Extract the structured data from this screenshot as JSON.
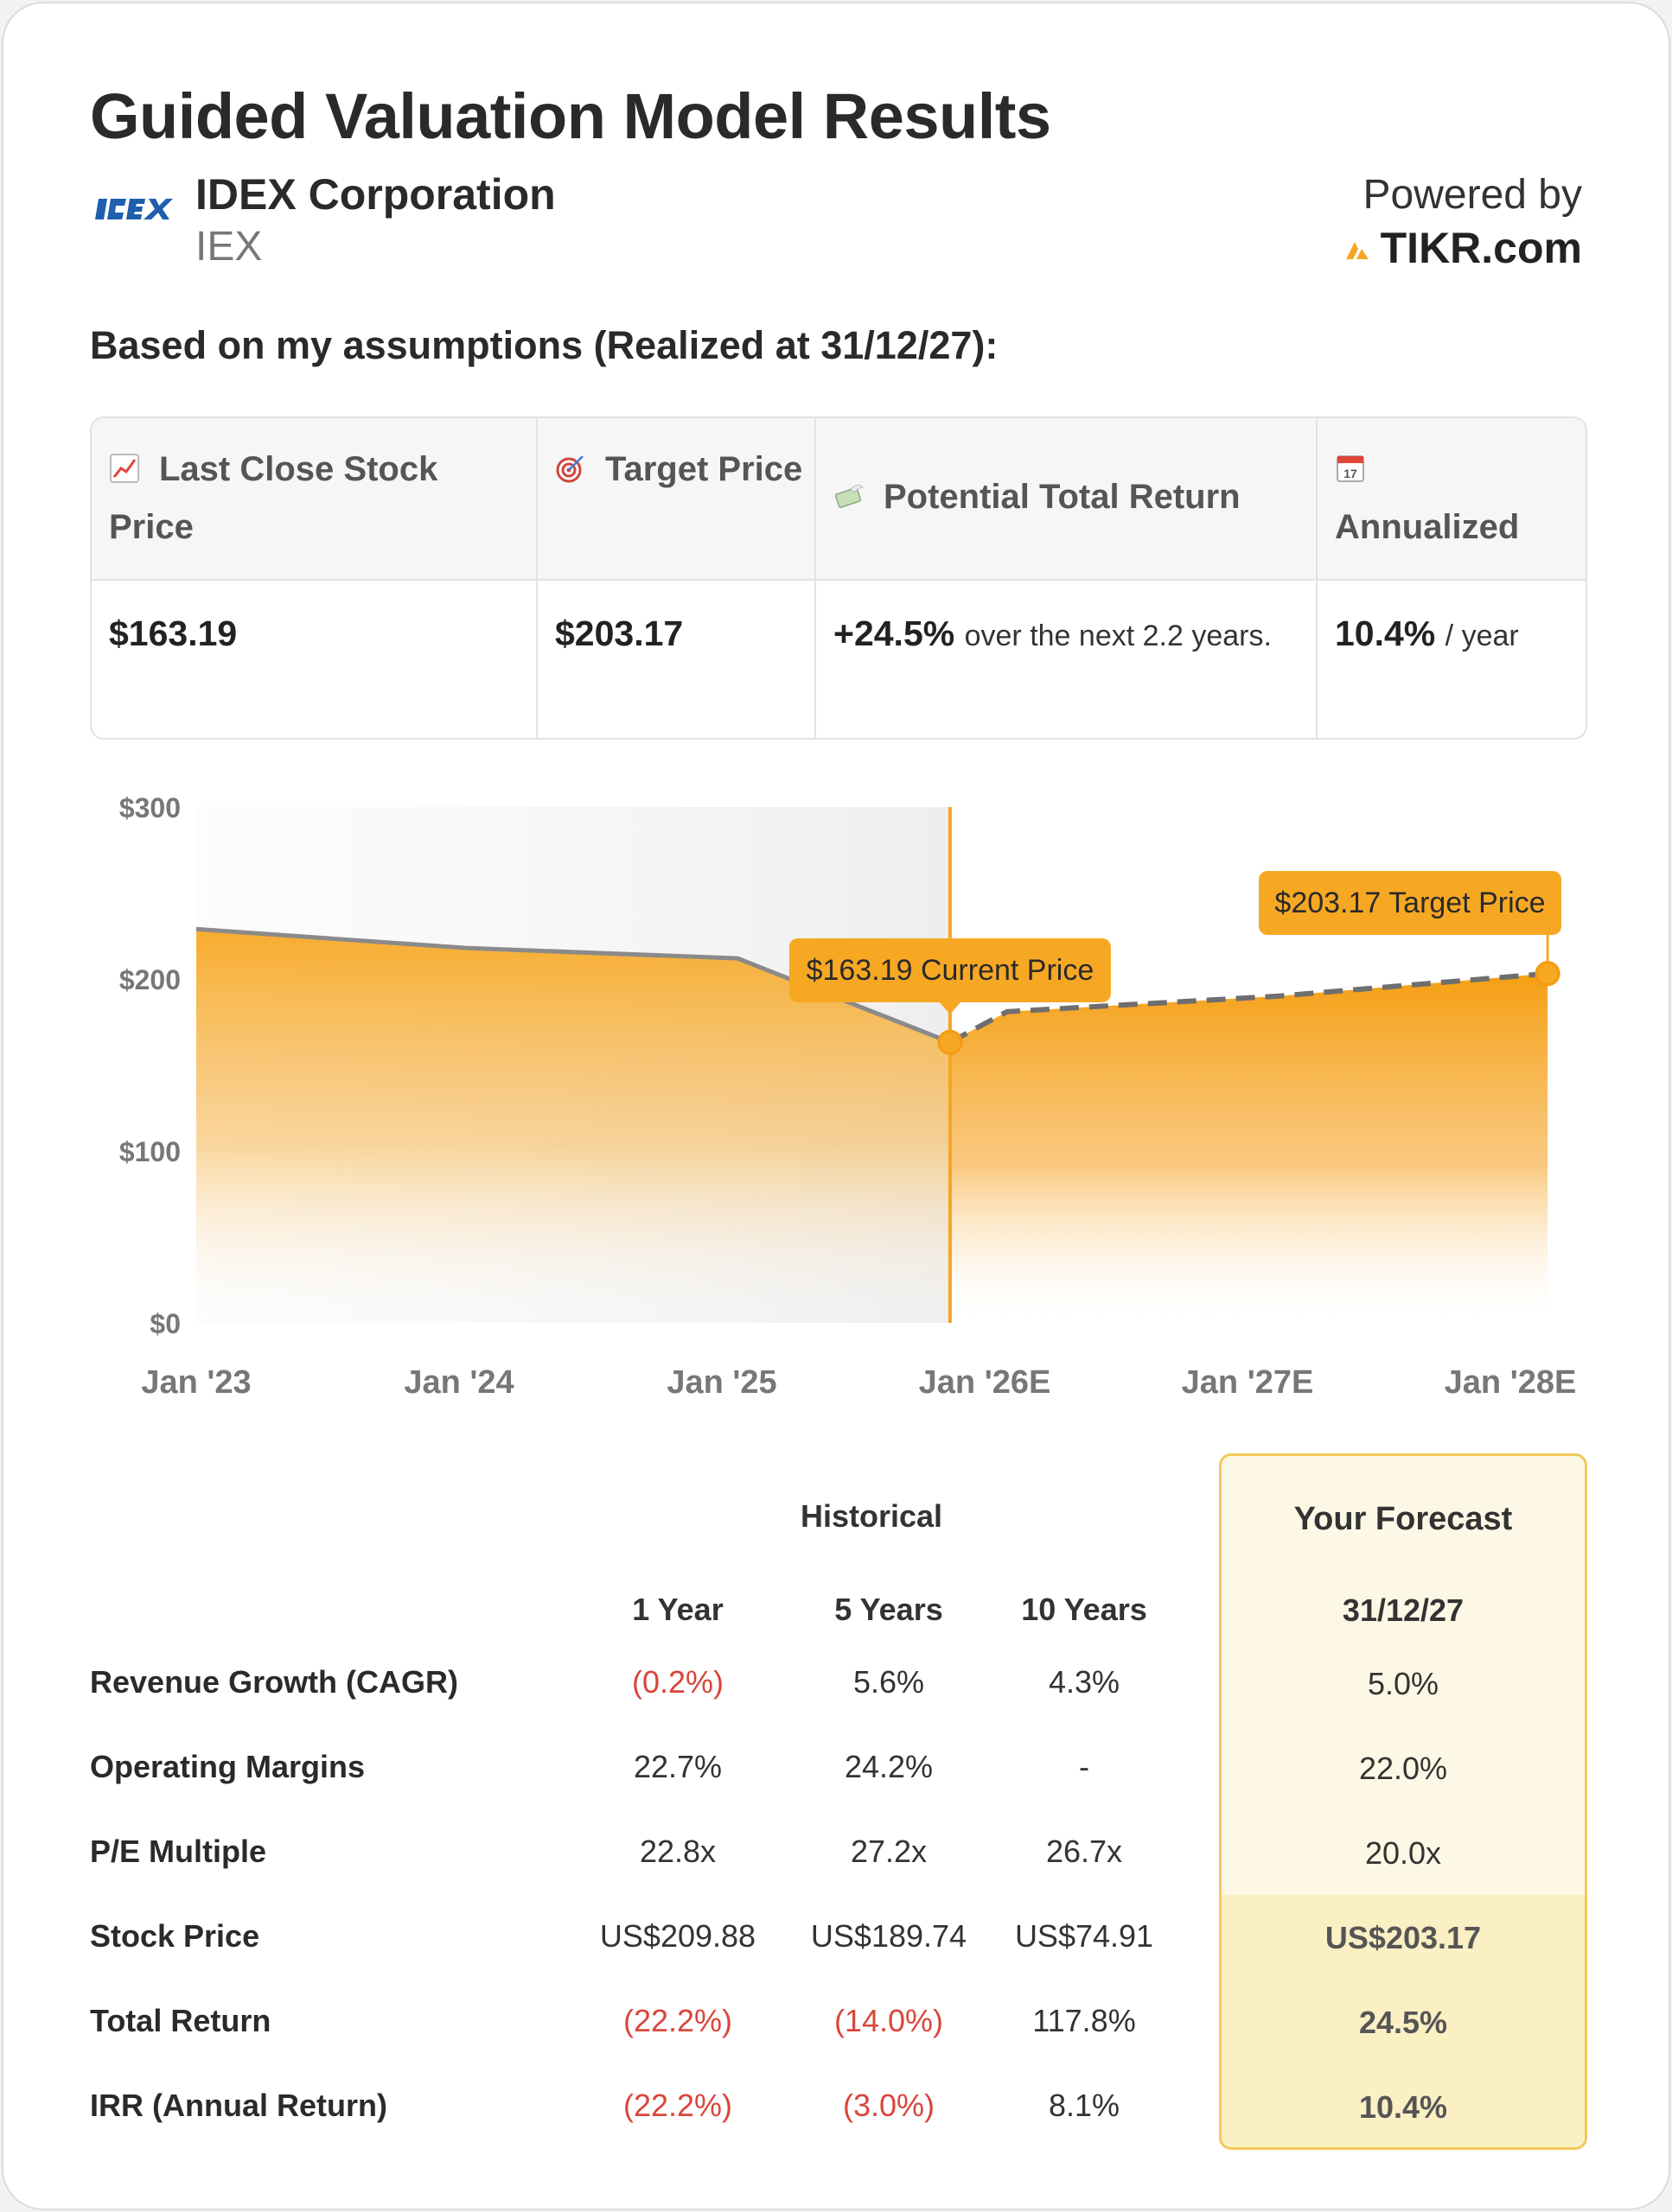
{
  "header": {
    "title": "Guided Valuation Model Results",
    "company": "IDEX Corporation",
    "ticker": "IEX",
    "powered_by": "Powered by",
    "brand": "TIKR.com",
    "assumptions": "Based on my assumptions (Realized at 31/12/27):"
  },
  "stats": {
    "headers": [
      "Last Close Stock Price",
      "Target Price",
      "Potential Total Return",
      "Annualized"
    ],
    "last_close": "$163.19",
    "target": "$203.17",
    "total_return": "+24.5%",
    "total_return_note": "over the next 2.2 years.",
    "annualized": "10.4%",
    "annualized_note": "/ year"
  },
  "colors": {
    "accent": "#f7a823",
    "negative": "#d9463b",
    "forecast_bg": "#fdf8e6",
    "forecast_border": "#f3c95a"
  },
  "chart_data": {
    "type": "area",
    "x_ticks": [
      "Jan '23",
      "Jan '24",
      "Jan '25",
      "Jan '26E",
      "Jan '27E",
      "Jan '28E"
    ],
    "y_ticks": [
      "$0",
      "$100",
      "$200",
      "$300"
    ],
    "ylim": [
      0,
      300
    ],
    "xlim": [
      "2023-01-01",
      "2028-01-01"
    ],
    "historical": [
      {
        "x": "2023-01-01",
        "y": 229
      },
      {
        "x": "2024-01-01",
        "y": 218
      },
      {
        "x": "2025-01-01",
        "y": 212
      },
      {
        "x": "2025-10-15",
        "y": 163.19
      }
    ],
    "forecast": [
      {
        "x": "2025-10-15",
        "y": 163.19
      },
      {
        "x": "2025-12-31",
        "y": 181
      },
      {
        "x": "2026-12-31",
        "y": 190
      },
      {
        "x": "2027-12-31",
        "y": 203.17
      }
    ],
    "annotations": [
      {
        "label": "$163.19 Current Price",
        "x": "2025-10-15",
        "y": 163.19
      },
      {
        "label": "$203.17 Target Price",
        "x": "2027-12-31",
        "y": 203.17
      }
    ]
  },
  "table": {
    "historical_label": "Historical",
    "forecast_title": "Your Forecast",
    "forecast_date": "31/12/27",
    "columns": [
      "1 Year",
      "5 Years",
      "10 Years"
    ],
    "rows": [
      {
        "label": "Revenue Growth (CAGR)",
        "values": [
          "(0.2%)",
          "5.6%",
          "4.3%"
        ],
        "forecast": "5.0%"
      },
      {
        "label": "Operating Margins",
        "values": [
          "22.7%",
          "24.2%",
          "-"
        ],
        "forecast": "22.0%"
      },
      {
        "label": "P/E Multiple",
        "values": [
          "22.8x",
          "27.2x",
          "26.7x"
        ],
        "forecast": "20.0x"
      },
      {
        "label": "Stock Price",
        "values": [
          "US$209.88",
          "US$189.74",
          "US$74.91"
        ],
        "forecast": "US$203.17"
      },
      {
        "label": "Total Return",
        "values": [
          "(22.2%)",
          "(14.0%)",
          "117.8%"
        ],
        "forecast": "24.5%"
      },
      {
        "label": "IRR (Annual Return)",
        "values": [
          "(22.2%)",
          "(3.0%)",
          "8.1%"
        ],
        "forecast": "10.4%"
      }
    ]
  }
}
